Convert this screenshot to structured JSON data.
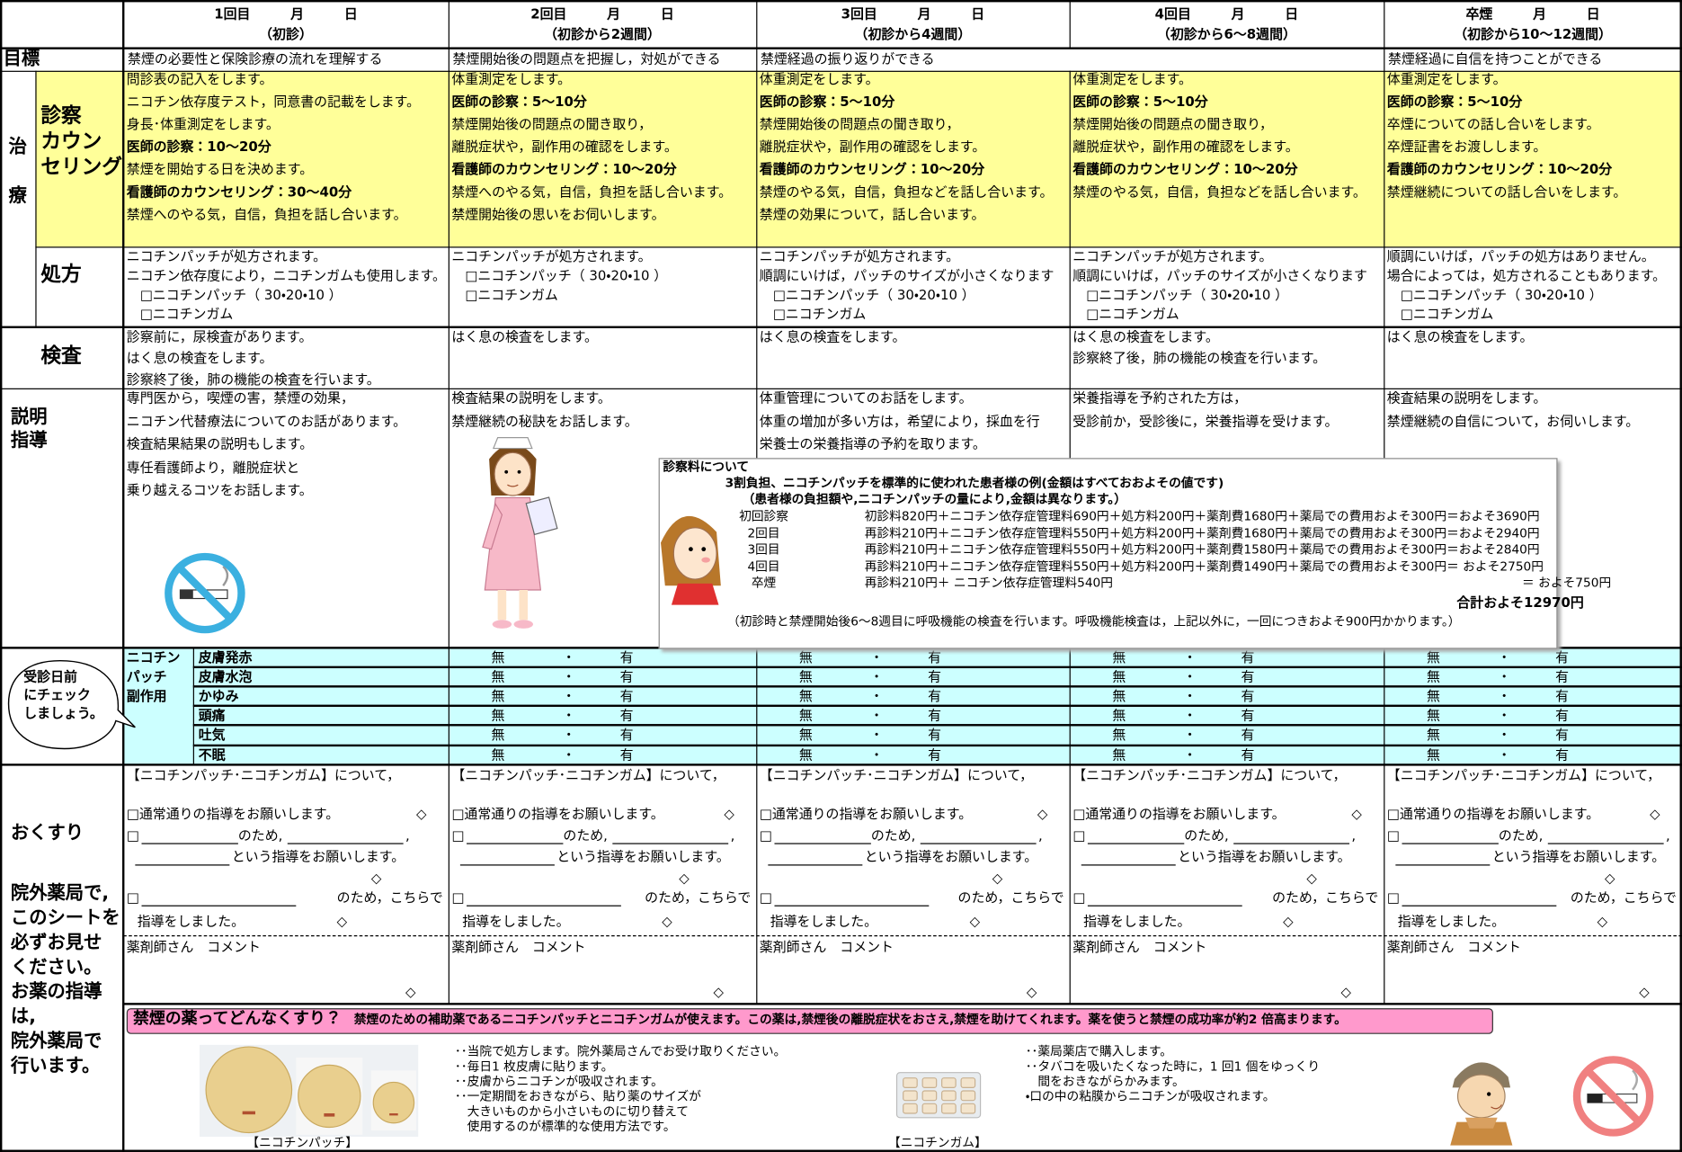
{
  "header": {
    "cols": [
      {
        "line1": "1回目　　　月　　　日",
        "line2": "（初診）"
      },
      {
        "line1": "2回目　　　月　　　日",
        "line2": "（初診から2週間）"
      },
      {
        "line1": "3回目　　　月　　　日",
        "line2": "（初診から4週間）"
      },
      {
        "line1": "4回目　　　月　　　日",
        "line2": "（初診から6～8週間）"
      },
      {
        "line1": "卒煙　　　月　　　日",
        "line2": "（初診から10～12週間）"
      }
    ]
  },
  "goal": {
    "label": "目標",
    "cells": [
      "禁煙の必要性と保険診療の流れを理解する",
      "禁煙開始後の問題点を把握し，対処ができる",
      "禁煙経過の振り返りができる",
      null,
      "禁煙経過に自信を持つことができる"
    ]
  },
  "treatment": {
    "label": [
      "治",
      "療"
    ]
  },
  "exam": {
    "label": [
      "診察",
      "カウン",
      "セリング"
    ],
    "cells": [
      {
        "lines": [
          "問診表の記入をします。",
          "ニコチン依存度テスト，同意書の記載をします。",
          "身長･体重測定をします。",
          "医師の診察：10～20分",
          "禁煙を開始する日を決めます。",
          "看護師のカウンセリング：30～40分",
          "禁煙へのやる気，自信，負担を話し合います。"
        ],
        "bold": [
          3,
          5
        ]
      },
      {
        "lines": [
          "体重測定をします。",
          "医師の診察：5～10分",
          "禁煙開始後の問題点の聞き取り，",
          "離脱症状や，副作用の確認をします。",
          "看護師のカウンセリング：10～20分",
          "禁煙へのやる気，自信，負担を話し合います。",
          "禁煙開始後の思いをお伺いします。"
        ],
        "bold": [
          1,
          4
        ]
      },
      {
        "lines": [
          "体重測定をします。",
          "医師の診察：5～10分",
          "禁煙開始後の問題点の聞き取り，",
          "離脱症状や，副作用の確認をします。",
          "看護師のカウンセリング：10～20分",
          "禁煙のやる気，自信，負担などを話し合います。",
          "禁煙の効果について，話し合います。"
        ],
        "bold": [
          1,
          4
        ]
      },
      {
        "lines": [
          "体重測定をします。",
          "医師の診察：5～10分",
          "禁煙開始後の問題点の聞き取り，",
          "離脱症状や，副作用の確認をします。",
          "看護師のカウンセリング：10～20分",
          "禁煙のやる気，自信，負担などを話し合います。"
        ],
        "bold": [
          1,
          4
        ]
      },
      {
        "lines": [
          "体重測定をします。",
          "医師の診察：5～10分",
          "卒煙についての話し合いをします。",
          "卒煙証書をお渡しします。",
          "看護師のカウンセリング：10～20分",
          "禁煙継続についての話し合いをします。"
        ],
        "bold": [
          1,
          4
        ]
      }
    ]
  },
  "prescription": {
    "label": [
      "処方"
    ],
    "cells": [
      {
        "lines": [
          "ニコチンパッチが処方されます。",
          "ニコチン依存度により，ニコチンガムも使用します。",
          "　□ニコチンパッチ（ 30・20・10 ）",
          "　□ニコチンガム"
        ],
        "bold": []
      },
      {
        "lines": [
          "ニコチンパッチが処方されます。",
          "　□ニコチンパッチ（ 30・20・10 ）",
          "　□ニコチンガム"
        ],
        "bold": []
      },
      {
        "lines": [
          "ニコチンパッチが処方されます。",
          "順調にいけば，パッチのサイズが小さくなります",
          "　□ニコチンパッチ（ 30・20・10 ）",
          "　□ニコチンガム"
        ],
        "bold": []
      },
      {
        "lines": [
          "ニコチンパッチが処方されます。",
          "順調にいけば，パッチのサイズが小さくなります",
          "　□ニコチンパッチ（ 30・20・10 ）",
          "　□ニコチンガム"
        ],
        "bold": []
      },
      {
        "lines": [
          "順調にいけば，パッチの処方はありません。",
          "場合によっては，処方されることもあります。",
          "　□ニコチンパッチ（ 30・20・10 ）",
          "　□ニコチンガム"
        ],
        "bold": []
      }
    ]
  },
  "test": {
    "label": [
      "検査"
    ],
    "cells": [
      {
        "lines": [
          "診察前に，尿検査があります。",
          "はく息の検査をします。",
          "診察終了後，肺の機能の検査を行います。"
        ],
        "bold": []
      },
      {
        "lines": [
          "はく息の検査をします。"
        ],
        "bold": []
      },
      {
        "lines": [
          "はく息の検査をします。"
        ],
        "bold": []
      },
      {
        "lines": [
          "はく息の検査をします。",
          "診察終了後，肺の機能の検査を行います。"
        ],
        "bold": []
      },
      {
        "lines": [
          "はく息の検査をします。"
        ],
        "bold": []
      }
    ]
  },
  "guidance": {
    "label": [
      "説明",
      "指導"
    ],
    "cells": [
      {
        "lines": [
          "専門医から，喫煙の害，禁煙の効果，",
          "ニコチン代替療法についてのお話があります。",
          "検査結果結果の説明もします。",
          "専任看護師より，離脱症状と",
          "乗り越えるコツをお話します。"
        ],
        "bold": []
      },
      {
        "lines": [
          "検査結果の説明をします。",
          "禁煙継続の秘訣をお話します。"
        ],
        "bold": []
      },
      {
        "lines": [
          "体重管理についてのお話をします。",
          "体重の増加が多い方は，希望により，採血を行",
          "栄養士の栄養指導の予約を取ります。"
        ],
        "bold": []
      },
      {
        "lines": [
          "栄養指導を予約された方は，",
          "受診前か，受診後に，栄養指導を受けます。"
        ],
        "bold": []
      },
      {
        "lines": [
          "検査結果の説明をします。",
          "禁煙継続の自信について，お伺いします。"
        ],
        "bold": []
      }
    ]
  },
  "fees": {
    "title": "診察料について",
    "heading1": "3割負担、ニコチンパッチを標準的に使われた患者様の例(金額はすべておおよその値です)",
    "heading2": "（患者様の負担額や,ニコチンパッチの量により,金額は異なります。）",
    "rows": [
      {
        "label": "初回診察",
        "text": "初診料820円＋ニコチン依存症管理料690円＋処方料200円＋薬剤費1680円＋薬局での費用およそ300円＝およそ3690円"
      },
      {
        "label": "2回目",
        "text": "再診料210円＋ニコチン依存症管理料550円＋処方料200円＋薬剤費1680円＋薬局での費用およそ300円＝およそ2940円"
      },
      {
        "label": "3回目",
        "text": "再診料210円＋ニコチン依存症管理料550円＋処方料200円＋薬剤費1580円＋薬局での費用およそ300円＝およそ2840円"
      },
      {
        "label": "4回目",
        "text": "再診料210円＋ニコチン依存症管理料550円＋処方料200円＋薬剤費1490円＋薬局での費用およそ300円＝ およそ2750円"
      },
      {
        "label": "卒煙",
        "text": "再診料210円＋ ニコチン依存症管理料540円"
      }
    ],
    "last_sum": "＝ およそ750円",
    "grand_total": "合計およそ12970円",
    "note": "（初診時と禁煙開始後6～8週目に呼吸機能の検査を行います。呼吸機能検査は，上記以外に，一回につきおよそ900円かかります。）"
  },
  "side_effects": {
    "bubble": [
      "受診日前",
      "にチェック",
      "しましょう。"
    ],
    "group": [
      "ニコチン",
      "パッチ",
      "副作用"
    ],
    "items": [
      "皮膚発赤",
      "皮膚水泡",
      "かゆみ",
      "頭痛",
      "吐気",
      "不眠"
    ],
    "choices": [
      "無",
      "・",
      "有"
    ]
  },
  "medicine": {
    "label": "おくすり",
    "note": [
      "院外薬局で,",
      "このシートを",
      "必ずお見せ",
      "ください。",
      "お薬の指導",
      "は,",
      "院外薬局で",
      "行います。"
    ],
    "cell": {
      "title": "【ニコチンパッチ･ニコチンガム】について，",
      "normal": "□通常通りの指導をお願いします。",
      "diamond": "◇",
      "box": "□",
      "for": "のため,",
      "comma": ",",
      "request": "という指導をお願いします。",
      "done_for": "のため，こちらで",
      "done": "指導をしました。",
      "comment": "薬剤師さん　コメント"
    }
  },
  "drugs": {
    "banner_title": "禁煙の薬ってどんなくすり？",
    "banner_text": "禁煙のための補助薬であるニコチンパッチとニコチンガムが使えます。この薬は,禁煙後の離脱症状をおさえ,禁煙を助けてくれます。薬を使うと禁煙の成功率が約2 倍高まります。",
    "patch": {
      "caption": "【ニコチンパッチ】",
      "lines": [
        "･･当院で処方します。院外薬局さんでお受け取りください。",
        "･･毎日1 枚皮膚に貼ります。",
        "･･皮膚からニコチンが吸収されます。",
        "･･一定期間をおきながら、貼り薬のサイズが",
        "　大きいものから小さいものに切り替えて",
        "　使用するのが標準的な使用方法です。"
      ]
    },
    "gum": {
      "caption": "【ニコチンガム】",
      "lines": [
        "･･薬局薬店で購入します。",
        "･･タバコを吸いたくなった時に，1 回1 個をゆっくり",
        "　間をおきながらかみます。",
        "・口の中の粘膜からニコチンが吸収されます。"
      ]
    }
  }
}
